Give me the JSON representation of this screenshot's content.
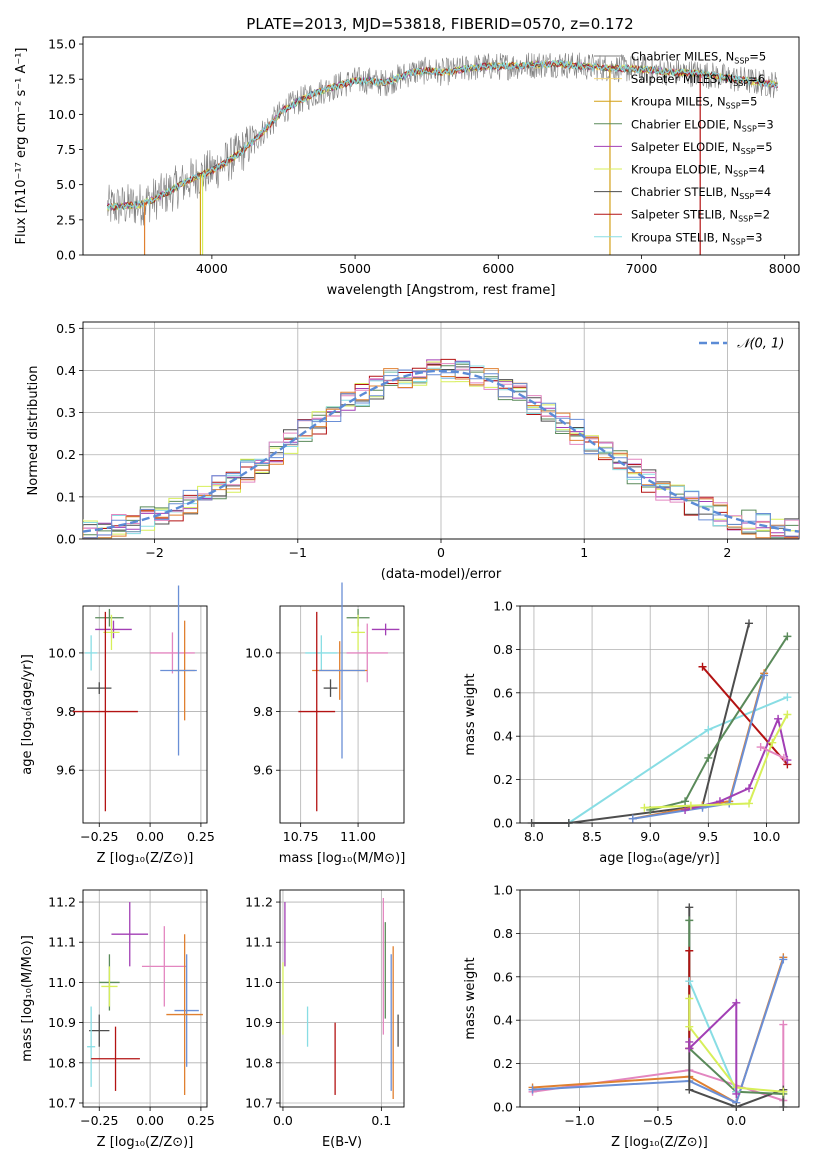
{
  "figure": {
    "title": "PLATE=2013, MJD=53818, FIBERID=0570, z=0.172",
    "colors": [
      "#808080",
      "#f4d77b",
      "#d4a017",
      "#5a8a5a",
      "#a23fb5",
      "#d7ef5a",
      "#4d4d4d",
      "#b31313",
      "#88dde4",
      "#e386c0",
      "#e08030",
      "#6a8fd6"
    ]
  },
  "chart_data": [
    {
      "id": "spectrum",
      "type": "line",
      "xlabel": "wavelength [Angstrom, rest frame]",
      "ylabel": "Flux [fλ10⁻¹⁷ erg cm⁻² s⁻¹ A⁻¹]",
      "xlim": [
        3100,
        8100
      ],
      "ylim": [
        0,
        15.5
      ],
      "xticks": [
        4000,
        5000,
        6000,
        7000,
        8000
      ],
      "yticks": [
        0.0,
        2.5,
        5.0,
        7.5,
        10.0,
        12.5,
        15.0
      ],
      "grid": false,
      "legend_position": "upper right",
      "continuum": {
        "x": [
          3270,
          3400,
          3500,
          3600,
          3700,
          3800,
          3900,
          4000,
          4100,
          4200,
          4300,
          4400,
          4500,
          4600,
          4700,
          4800,
          4900,
          5000,
          5100,
          5200,
          5300,
          5400,
          5500,
          5600,
          5700,
          5800,
          5900,
          6000,
          6200,
          6400,
          6600,
          6800,
          7000,
          7200,
          7400,
          7600,
          7800,
          7950
        ],
        "y": [
          3.4,
          3.5,
          3.6,
          4.0,
          4.5,
          5.1,
          5.6,
          6.0,
          6.6,
          7.3,
          8.2,
          9.2,
          10.3,
          10.9,
          11.4,
          11.8,
          12.1,
          12.4,
          12.4,
          12.2,
          12.6,
          13.0,
          13.1,
          13.0,
          13.1,
          13.3,
          13.4,
          13.4,
          13.5,
          13.6,
          13.4,
          13.3,
          13.2,
          13.0,
          12.9,
          12.6,
          12.3,
          12.1
        ]
      },
      "series": [
        {
          "name": "Chabrier MILES, N_SSP=5",
          "label_main": "Chabrier MILES, N",
          "label_sub": "SSP",
          "label_tail": "=5"
        },
        {
          "name": "Salpeter MILES, N_SSP=6",
          "label_main": "Salpeter MILES, N",
          "label_sub": "SSP",
          "label_tail": "=6"
        },
        {
          "name": "Kroupa MILES, N_SSP=5",
          "label_main": "Kroupa MILES, N",
          "label_sub": "SSP",
          "label_tail": "=5"
        },
        {
          "name": "Chabrier ELODIE, N_SSP=3",
          "label_main": "Chabrier ELODIE, N",
          "label_sub": "SSP",
          "label_tail": "=3"
        },
        {
          "name": "Salpeter ELODIE, N_SSP=5",
          "label_main": "Salpeter ELODIE, N",
          "label_sub": "SSP",
          "label_tail": "=5"
        },
        {
          "name": "Kroupa ELODIE, N_SSP=4",
          "label_main": "Kroupa ELODIE, N",
          "label_sub": "SSP",
          "label_tail": "=4"
        },
        {
          "name": "Chabrier STELIB, N_SSP=4",
          "label_main": "Chabrier STELIB, N",
          "label_sub": "SSP",
          "label_tail": "=4"
        },
        {
          "name": "Salpeter STELIB, N_SSP=2",
          "label_main": "Salpeter STELIB, N",
          "label_sub": "SSP",
          "label_tail": "=2"
        },
        {
          "name": "Kroupa STELIB, N_SSP=3",
          "label_main": "Kroupa STELIB, N",
          "label_sub": "SSP",
          "label_tail": "=3"
        }
      ],
      "series_colors": [
        "#808080",
        "#f4d77b",
        "#d4a017",
        "#5a8a5a",
        "#a23fb5",
        "#d7ef5a",
        "#4d4d4d",
        "#b31313",
        "#88dde4"
      ],
      "spikes": [
        {
          "x": 3530,
          "color": "#e08030"
        },
        {
          "x": 3920,
          "color": "#d4a017"
        },
        {
          "x": 3935,
          "color": "#d7ef5a"
        },
        {
          "x": 6780,
          "color": "#d4a017"
        },
        {
          "x": 7410,
          "color": "#b31313"
        }
      ]
    },
    {
      "id": "residuals",
      "type": "histogram",
      "xlabel": "(data-model)/error",
      "ylabel": "Normed distribution",
      "xlim": [
        -2.5,
        2.5
      ],
      "ylim": [
        0,
        0.515
      ],
      "xticks": [
        -2,
        -1,
        0,
        1,
        2
      ],
      "yticks": [
        0.0,
        0.1,
        0.2,
        0.3,
        0.4,
        0.5
      ],
      "grid": true,
      "bin_width": 0.1,
      "legend": "𝒩(0, 1)",
      "legend_position": "upper right",
      "gaussian_color": "#5b8bd6"
    },
    {
      "id": "age_vs_Z",
      "type": "errorbar",
      "xlabel": "Z [log₁₀(Z/Z⊙)]",
      "ylabel": "age  [log₁₀(age/yr)]",
      "xlim": [
        -0.33,
        0.28
      ],
      "ylim": [
        9.42,
        10.16
      ],
      "xticks": [
        -0.25,
        0.0,
        0.25
      ],
      "xticklabels": [
        "−0.25",
        "0.00",
        "0.25"
      ],
      "yticks": [
        9.6,
        9.8,
        10.0
      ],
      "yticklabels": [
        "9.6",
        "9.8",
        "10.0"
      ],
      "grid": true,
      "points": [
        {
          "x": -0.2,
          "y": 10.12,
          "xerr": 0.07,
          "yerr": 0.03,
          "color": "#5a8a5a"
        },
        {
          "x": -0.18,
          "y": 10.08,
          "xerr": 0.09,
          "yerr": 0.03,
          "color": "#a23fb5"
        },
        {
          "x": -0.19,
          "y": 10.07,
          "xerr": 0.04,
          "yerr": 0.06,
          "color": "#d7ef5a"
        },
        {
          "x": -0.29,
          "y": 10.0,
          "xerr": 0.03,
          "yerr": 0.06,
          "color": "#88dde4"
        },
        {
          "x": 0.11,
          "y": 10.0,
          "xerr": 0.11,
          "yerr": 0.07,
          "color": "#e386c0"
        },
        {
          "x": 0.17,
          "y": 9.94,
          "xerr": 0.05,
          "yerr": 0.17,
          "color": "#e08030"
        },
        {
          "x": 0.14,
          "y": 9.94,
          "xerr": 0.09,
          "yerr": 0.29,
          "color": "#6a8fd6"
        },
        {
          "x": -0.25,
          "y": 9.88,
          "xerr": 0.06,
          "yerr": 0.02,
          "color": "#4d4d4d"
        },
        {
          "x": -0.22,
          "y": 9.8,
          "xerr": 0.16,
          "yerr": 0.34,
          "color": "#b31313"
        }
      ]
    },
    {
      "id": "age_vs_mass",
      "type": "errorbar",
      "xlabel": "mass [log₁₀(M/M⊙)]",
      "ylabel": "",
      "xlim": [
        10.66,
        11.2
      ],
      "ylim": [
        9.42,
        10.16
      ],
      "xticks": [
        10.75,
        11.0
      ],
      "xticklabels": [
        "10.75",
        "11.00"
      ],
      "yticks": [
        9.6,
        9.8,
        10.0
      ],
      "yticklabels": [
        "9.6",
        "9.8",
        "10.0"
      ],
      "grid": true,
      "points": [
        {
          "x": 11.0,
          "y": 10.12,
          "xerr": 0.05,
          "yerr": 0.03,
          "color": "#5a8a5a"
        },
        {
          "x": 11.12,
          "y": 10.08,
          "xerr": 0.06,
          "yerr": 0.02,
          "color": "#a23fb5"
        },
        {
          "x": 11.0,
          "y": 10.07,
          "xerr": 0.03,
          "yerr": 0.06,
          "color": "#d7ef5a"
        },
        {
          "x": 10.84,
          "y": 10.0,
          "xerr": 0.07,
          "yerr": 0.06,
          "color": "#88dde4"
        },
        {
          "x": 11.04,
          "y": 10.0,
          "xerr": 0.09,
          "yerr": 0.1,
          "color": "#e386c0"
        },
        {
          "x": 10.92,
          "y": 9.94,
          "xerr": 0.12,
          "yerr": 0.1,
          "color": "#e08030"
        },
        {
          "x": 10.93,
          "y": 9.94,
          "xerr": 0.1,
          "yerr": 0.3,
          "color": "#6a8fd6"
        },
        {
          "x": 10.88,
          "y": 9.88,
          "xerr": 0.03,
          "yerr": 0.03,
          "color": "#4d4d4d"
        },
        {
          "x": 10.82,
          "y": 9.8,
          "xerr": 0.08,
          "yerr": 0.34,
          "color": "#b31313"
        }
      ]
    },
    {
      "id": "weight_vs_age",
      "type": "line",
      "xlabel": "age  [log₁₀(age/yr)]",
      "ylabel": "mass weight",
      "xlim": [
        7.88,
        10.28
      ],
      "ylim": [
        0,
        1
      ],
      "xticks": [
        8.0,
        8.5,
        9.0,
        9.5,
        10.0
      ],
      "xticklabels": [
        "8.0",
        "8.5",
        "9.0",
        "9.5",
        "10.0"
      ],
      "yticks": [
        0.0,
        0.2,
        0.4,
        0.6,
        0.8,
        1.0
      ],
      "yticklabels": [
        "0.0",
        "0.2",
        "0.4",
        "0.6",
        "0.8",
        "1.0"
      ],
      "grid": true,
      "lines": [
        {
          "color": "#88dde4",
          "x": [
            8.3,
            9.5,
            10.18
          ],
          "y": [
            0.0,
            0.43,
            0.58
          ]
        },
        {
          "color": "#4d4d4d",
          "x": [
            7.98,
            8.3,
            9.45,
            9.85
          ],
          "y": [
            0.0,
            0.0,
            0.08,
            0.92
          ]
        },
        {
          "color": "#5a8a5a",
          "x": [
            9.0,
            9.3,
            9.5,
            10.18
          ],
          "y": [
            0.06,
            0.1,
            0.3,
            0.86
          ]
        },
        {
          "color": "#b31313",
          "x": [
            9.45,
            10.18
          ],
          "y": [
            0.72,
            0.27
          ]
        },
        {
          "color": "#e08030",
          "x": [
            8.85,
            9.45,
            9.68,
            9.98
          ],
          "y": [
            0.02,
            0.08,
            0.1,
            0.69
          ]
        },
        {
          "color": "#6a8fd6",
          "x": [
            8.85,
            9.45,
            9.68,
            9.98
          ],
          "y": [
            0.02,
            0.07,
            0.09,
            0.68
          ]
        },
        {
          "color": "#a23fb5",
          "x": [
            9.3,
            9.6,
            9.85,
            10.1,
            10.18
          ],
          "y": [
            0.06,
            0.1,
            0.16,
            0.48,
            0.29
          ]
        },
        {
          "color": "#d7ef5a",
          "x": [
            8.95,
            9.35,
            9.85,
            10.05,
            10.18
          ],
          "y": [
            0.07,
            0.08,
            0.09,
            0.37,
            0.5
          ]
        },
        {
          "color": "#e386c0",
          "x": [
            9.95,
            10.15
          ],
          "y": [
            0.35,
            0.3
          ]
        }
      ]
    },
    {
      "id": "mass_vs_Z",
      "type": "errorbar",
      "xlabel": "Z [log₁₀(Z/Z⊙)]",
      "ylabel": "mass [log₁₀(M/M⊙)]",
      "xlim": [
        -0.33,
        0.28
      ],
      "ylim": [
        10.69,
        11.23
      ],
      "xticks": [
        -0.25,
        0.0,
        0.25
      ],
      "xticklabels": [
        "−0.25",
        "0.00",
        "0.25"
      ],
      "yticks": [
        10.7,
        10.8,
        10.9,
        11.0,
        11.1,
        11.2
      ],
      "yticklabels": [
        "10.7",
        "10.8",
        "10.9",
        "11.0",
        "11.1",
        "11.2"
      ],
      "grid": true,
      "points": [
        {
          "x": -0.1,
          "y": 11.12,
          "xerr": 0.09,
          "yerr": 0.08,
          "color": "#a23fb5"
        },
        {
          "x": 0.07,
          "y": 11.04,
          "xerr": 0.11,
          "yerr": 0.1,
          "color": "#e386c0"
        },
        {
          "x": -0.2,
          "y": 11.0,
          "xerr": 0.05,
          "yerr": 0.07,
          "color": "#5a8a5a"
        },
        {
          "x": -0.2,
          "y": 10.99,
          "xerr": 0.04,
          "yerr": 0.05,
          "color": "#d7ef5a"
        },
        {
          "x": 0.18,
          "y": 10.93,
          "xerr": 0.06,
          "yerr": 0.14,
          "color": "#6a8fd6"
        },
        {
          "x": 0.17,
          "y": 10.92,
          "xerr": 0.09,
          "yerr": 0.2,
          "color": "#e08030"
        },
        {
          "x": -0.25,
          "y": 10.88,
          "xerr": 0.05,
          "yerr": 0.04,
          "color": "#4d4d4d"
        },
        {
          "x": -0.29,
          "y": 10.84,
          "xerr": 0.02,
          "yerr": 0.1,
          "color": "#88dde4"
        },
        {
          "x": -0.17,
          "y": 10.81,
          "xerr": 0.12,
          "yerr": 0.08,
          "color": "#b31313"
        }
      ]
    },
    {
      "id": "mass_vs_EBV",
      "type": "errorbar",
      "xlabel": "E(B-V)",
      "ylabel": "",
      "xlim": [
        -0.003,
        0.123
      ],
      "ylim": [
        10.69,
        11.23
      ],
      "xticks": [
        0.0,
        0.1
      ],
      "xticklabels": [
        "0.0",
        "0.1"
      ],
      "yticks": [
        10.7,
        10.8,
        10.9,
        11.0,
        11.1,
        11.2
      ],
      "yticklabels": [
        "10.7",
        "10.8",
        "10.9",
        "11.0",
        "11.1",
        "11.2"
      ],
      "grid": true,
      "points": [
        {
          "x": 0.002,
          "y": 11.12,
          "xerr": 0,
          "yerr": 0.08,
          "color": "#a23fb5"
        },
        {
          "x": 0.0,
          "y": 10.96,
          "xerr": 0,
          "yerr": 0.09,
          "color": "#d7ef5a"
        },
        {
          "x": 0.025,
          "y": 10.89,
          "xerr": 0,
          "yerr": 0.05,
          "color": "#88dde4"
        },
        {
          "x": 0.053,
          "y": 10.81,
          "xerr": 0,
          "yerr": 0.09,
          "color": "#b31313"
        },
        {
          "x": 0.102,
          "y": 11.04,
          "xerr": 0,
          "yerr": 0.17,
          "color": "#e386c0"
        },
        {
          "x": 0.104,
          "y": 11.03,
          "xerr": 0,
          "yerr": 0.12,
          "color": "#5a8a5a"
        },
        {
          "x": 0.11,
          "y": 10.9,
          "xerr": 0,
          "yerr": 0.17,
          "color": "#6a8fd6"
        },
        {
          "x": 0.112,
          "y": 10.9,
          "xerr": 0,
          "yerr": 0.19,
          "color": "#e08030"
        },
        {
          "x": 0.117,
          "y": 10.88,
          "xerr": 0,
          "yerr": 0.04,
          "color": "#4d4d4d"
        }
      ]
    },
    {
      "id": "weight_vs_Z",
      "type": "line",
      "xlabel": "Z [log₁₀(Z/Z⊙)]",
      "ylabel": "mass weight",
      "xlim": [
        -1.38,
        0.4
      ],
      "ylim": [
        0,
        1
      ],
      "xticks": [
        -1.0,
        -0.5,
        0.0
      ],
      "xticklabels": [
        "−1.0",
        "−0.5",
        "0.0"
      ],
      "yticks": [
        0.0,
        0.2,
        0.4,
        0.6,
        0.8,
        1.0
      ],
      "yticklabels": [
        "0.0",
        "0.2",
        "0.4",
        "0.6",
        "0.8",
        "1.0"
      ],
      "grid": true,
      "lines": [
        {
          "color": "#e386c0",
          "x": [
            -1.3,
            -0.3,
            0.3,
            0.3
          ],
          "y": [
            0.07,
            0.17,
            0.03,
            0.38
          ]
        },
        {
          "color": "#e08030",
          "x": [
            -1.3,
            -0.3,
            0.0,
            0.3
          ],
          "y": [
            0.09,
            0.14,
            0.02,
            0.69
          ]
        },
        {
          "color": "#6a8fd6",
          "x": [
            -1.3,
            -0.3,
            0.0,
            0.3
          ],
          "y": [
            0.08,
            0.12,
            0.02,
            0.68
          ]
        },
        {
          "color": "#4d4d4d",
          "x": [
            -0.3,
            -0.3,
            0.0,
            0.3,
            0.3
          ],
          "y": [
            0.92,
            0.08,
            0.0,
            0.08,
            0.0
          ]
        },
        {
          "color": "#5a8a5a",
          "x": [
            -0.3,
            -0.3,
            0.0,
            0.3
          ],
          "y": [
            0.86,
            0.27,
            0.07,
            0.06
          ]
        },
        {
          "color": "#b31313",
          "x": [
            -0.3,
            -0.3
          ],
          "y": [
            0.72,
            0.27
          ]
        },
        {
          "color": "#88dde4",
          "x": [
            -0.3,
            0.0
          ],
          "y": [
            0.58,
            0.07
          ]
        },
        {
          "color": "#d7ef5a",
          "x": [
            -0.3,
            -0.3,
            0.0,
            0.3
          ],
          "y": [
            0.5,
            0.37,
            0.09,
            0.07
          ]
        },
        {
          "color": "#a23fb5",
          "x": [
            -0.3,
            -0.3,
            0.0,
            0.0
          ],
          "y": [
            0.3,
            0.27,
            0.48,
            0.06
          ]
        }
      ]
    }
  ]
}
